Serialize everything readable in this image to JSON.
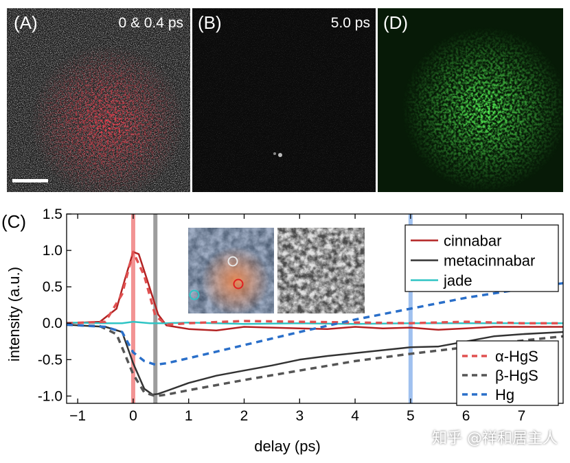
{
  "panels": [
    {
      "label": "(A)",
      "time": "0 & 0.4 ps"
    },
    {
      "label": "(B)",
      "time": "5.0 ps"
    },
    {
      "label": "(D)",
      "time": ""
    }
  ],
  "chart_label": "(C)",
  "watermark": "知乎 @祥和居主人",
  "chart_data": {
    "type": "line",
    "xlabel": "delay (ps)",
    "ylabel": "intensity (a.u.)",
    "xlim": [
      -1.2,
      7.75
    ],
    "ylim": [
      -1.1,
      1.5
    ],
    "xticks": [
      -1,
      0,
      1,
      2,
      3,
      4,
      5,
      6,
      7
    ],
    "yticks": [
      -1.0,
      -0.5,
      0.0,
      0.5,
      1.0,
      1.5
    ],
    "ytick_labels": [
      "-1.0",
      "-0.5",
      "0.0",
      "0.5",
      "1.0",
      "1.5"
    ],
    "vlines": [
      {
        "x": 0.0,
        "color": "#f08080"
      },
      {
        "x": 0.4,
        "color": "#8c8c8c"
      },
      {
        "x": 5.0,
        "color": "#8fb6ec"
      }
    ],
    "series": [
      {
        "name": "cinnabar",
        "style": "solid",
        "color": "#b22222",
        "x": [
          -1.2,
          -0.6,
          -0.3,
          -0.15,
          0.0,
          0.1,
          0.25,
          0.45,
          0.6,
          1.0,
          1.5,
          2.0,
          2.5,
          3.0,
          3.5,
          4.0,
          4.5,
          5.0,
          5.5,
          6.0,
          6.5,
          7.0,
          7.75
        ],
        "y": [
          0.0,
          0.02,
          0.2,
          0.6,
          0.98,
          0.95,
          0.6,
          0.12,
          -0.03,
          -0.08,
          -0.1,
          -0.05,
          -0.06,
          -0.07,
          -0.08,
          -0.05,
          -0.07,
          -0.06,
          -0.09,
          -0.07,
          -0.05,
          -0.05,
          -0.05
        ]
      },
      {
        "name": "metacinnabar",
        "style": "solid",
        "color": "#333333",
        "x": [
          -1.2,
          -0.5,
          -0.2,
          0.0,
          0.2,
          0.35,
          0.45,
          0.6,
          1.0,
          1.5,
          2.0,
          2.5,
          3.0,
          3.5,
          4.0,
          4.5,
          5.0,
          5.5,
          6.0,
          6.5,
          7.0,
          7.75
        ],
        "y": [
          -0.02,
          -0.05,
          -0.12,
          -0.55,
          -0.9,
          -0.98,
          -0.97,
          -0.93,
          -0.82,
          -0.72,
          -0.65,
          -0.58,
          -0.5,
          -0.45,
          -0.41,
          -0.37,
          -0.33,
          -0.32,
          -0.25,
          -0.18,
          -0.15,
          -0.12
        ]
      },
      {
        "name": "jade",
        "style": "solid",
        "color": "#2ec4c4",
        "x": [
          -1.2,
          -0.5,
          -0.2,
          0.0,
          0.3,
          0.6,
          1.0,
          2.0,
          3.0,
          4.0,
          5.0,
          6.0,
          7.0,
          7.75
        ],
        "y": [
          0.01,
          0.0,
          0.0,
          0.02,
          0.0,
          0.0,
          0.01,
          -0.01,
          0.0,
          -0.01,
          0.0,
          0.0,
          0.0,
          0.0
        ]
      },
      {
        "name": "α-HgS",
        "style": "dashed",
        "color": "#e05050",
        "x": [
          -1.2,
          -0.5,
          -0.2,
          0.0,
          0.2,
          0.4,
          0.6,
          1.0,
          2.0,
          3.0,
          4.0,
          5.0,
          6.0,
          7.0,
          7.75
        ],
        "y": [
          0.0,
          0.02,
          0.4,
          0.98,
          0.65,
          0.1,
          -0.02,
          0.0,
          0.03,
          0.02,
          0.01,
          0.0,
          0.02,
          0.0,
          0.0
        ]
      },
      {
        "name": "β-HgS",
        "style": "dashed",
        "color": "#555555",
        "x": [
          -1.2,
          -0.6,
          -0.3,
          0.0,
          0.2,
          0.4,
          0.6,
          1.0,
          2.0,
          3.0,
          4.0,
          5.0,
          6.0,
          7.0,
          7.75
        ],
        "y": [
          -0.02,
          -0.04,
          -0.15,
          -0.7,
          -0.95,
          -1.0,
          -0.98,
          -0.92,
          -0.78,
          -0.65,
          -0.52,
          -0.42,
          -0.33,
          -0.24,
          -0.18
        ]
      },
      {
        "name": "Hg",
        "style": "dashed",
        "color": "#2a6fc9",
        "x": [
          -1.2,
          -0.5,
          -0.2,
          0.0,
          0.2,
          0.4,
          0.6,
          1.0,
          2.0,
          3.0,
          4.0,
          5.0,
          6.0,
          7.0,
          7.75
        ],
        "y": [
          -0.02,
          -0.05,
          -0.12,
          -0.4,
          -0.52,
          -0.57,
          -0.55,
          -0.48,
          -0.3,
          -0.12,
          0.05,
          0.2,
          0.35,
          0.47,
          0.55
        ]
      }
    ],
    "legend1": [
      "cinnabar",
      "metacinnabar",
      "jade"
    ],
    "legend2": [
      "α-HgS",
      "β-HgS",
      "Hg"
    ]
  }
}
